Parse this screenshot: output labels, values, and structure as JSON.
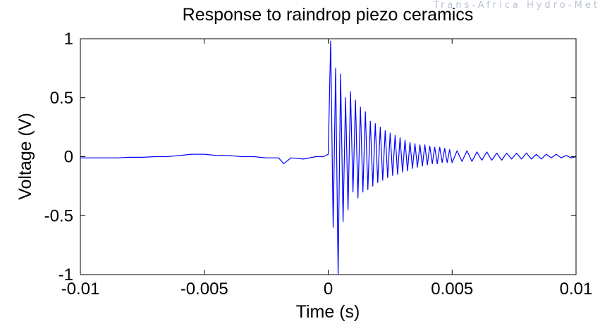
{
  "watermark": "Trans-Africa Hydro-Meteorological",
  "chart_data": {
    "type": "line",
    "title": "Response to raindrop piezo ceramics",
    "xlabel": "Time (s)",
    "ylabel": "Voltage (V)",
    "xlim": [
      -0.01,
      0.01
    ],
    "ylim": [
      -1,
      1
    ],
    "x_ticks": [
      -0.01,
      -0.005,
      0,
      0.005,
      0.01
    ],
    "x_tick_labels": [
      "-0.01",
      "-0.005",
      "0",
      "0.005",
      "0.01"
    ],
    "y_ticks": [
      -1,
      -0.5,
      0,
      0.5,
      1
    ],
    "y_tick_labels": [
      "-1",
      "-0.5",
      "0",
      "0.5",
      "1"
    ],
    "grid": false,
    "legend": "none",
    "series": [
      {
        "color": "#0000ff",
        "x": [
          -0.01,
          -0.0095,
          -0.009,
          -0.0085,
          -0.008,
          -0.0075,
          -0.007,
          -0.0065,
          -0.006,
          -0.0055,
          -0.005,
          -0.0045,
          -0.004,
          -0.0035,
          -0.003,
          -0.0025,
          -0.002,
          -0.0018,
          -0.0015,
          -0.001,
          -0.0005,
          -0.0002,
          0,
          0.0001,
          0.0002,
          0.0003,
          0.0004,
          0.0005,
          0.0006,
          0.0007,
          0.0008,
          0.0009,
          0.001,
          0.0011,
          0.0012,
          0.0013,
          0.0014,
          0.0015,
          0.0016,
          0.0017,
          0.0018,
          0.0019,
          0.002,
          0.0021,
          0.0022,
          0.0023,
          0.0024,
          0.0025,
          0.0026,
          0.0027,
          0.0028,
          0.0029,
          0.003,
          0.0031,
          0.0032,
          0.0033,
          0.0034,
          0.0035,
          0.0036,
          0.0037,
          0.0038,
          0.0039,
          0.004,
          0.0041,
          0.0042,
          0.0043,
          0.0044,
          0.0045,
          0.0046,
          0.0047,
          0.0048,
          0.0049,
          0.005,
          0.0052,
          0.0054,
          0.0056,
          0.0058,
          0.006,
          0.0062,
          0.0064,
          0.0066,
          0.0068,
          0.007,
          0.0072,
          0.0074,
          0.0076,
          0.0078,
          0.008,
          0.0082,
          0.0084,
          0.0086,
          0.0088,
          0.009,
          0.0092,
          0.0094,
          0.0096,
          0.0098,
          0.01
        ],
        "y": [
          -0.01,
          -0.01,
          -0.01,
          -0.01,
          -0.005,
          -0.005,
          0,
          0,
          0.01,
          0.02,
          0.02,
          0.01,
          0.01,
          0,
          0,
          -0.01,
          -0.01,
          -0.06,
          -0.01,
          -0.02,
          0,
          0,
          0.02,
          0.98,
          -0.6,
          0.75,
          -1,
          0.7,
          -0.55,
          0.5,
          -0.45,
          0.55,
          -0.3,
          0.48,
          -0.35,
          0.42,
          -0.3,
          0.38,
          -0.28,
          0.3,
          -0.25,
          0.28,
          -0.22,
          0.25,
          -0.2,
          0.22,
          -0.18,
          0.2,
          -0.16,
          0.18,
          -0.15,
          0.16,
          -0.13,
          0.14,
          -0.12,
          0.12,
          -0.1,
          0.11,
          -0.09,
          0.1,
          -0.08,
          0.1,
          -0.07,
          0.09,
          -0.06,
          0.08,
          -0.06,
          0.08,
          -0.05,
          0.07,
          -0.05,
          0.06,
          -0.05,
          0.05,
          -0.04,
          0.05,
          -0.04,
          0.04,
          -0.03,
          0.04,
          -0.03,
          0.03,
          -0.03,
          0.03,
          -0.02,
          0.03,
          -0.02,
          0.03,
          -0.02,
          0.02,
          -0.02,
          0.02,
          -0.01,
          0.02,
          -0.01,
          0.01,
          -0.01,
          0
        ]
      }
    ]
  }
}
